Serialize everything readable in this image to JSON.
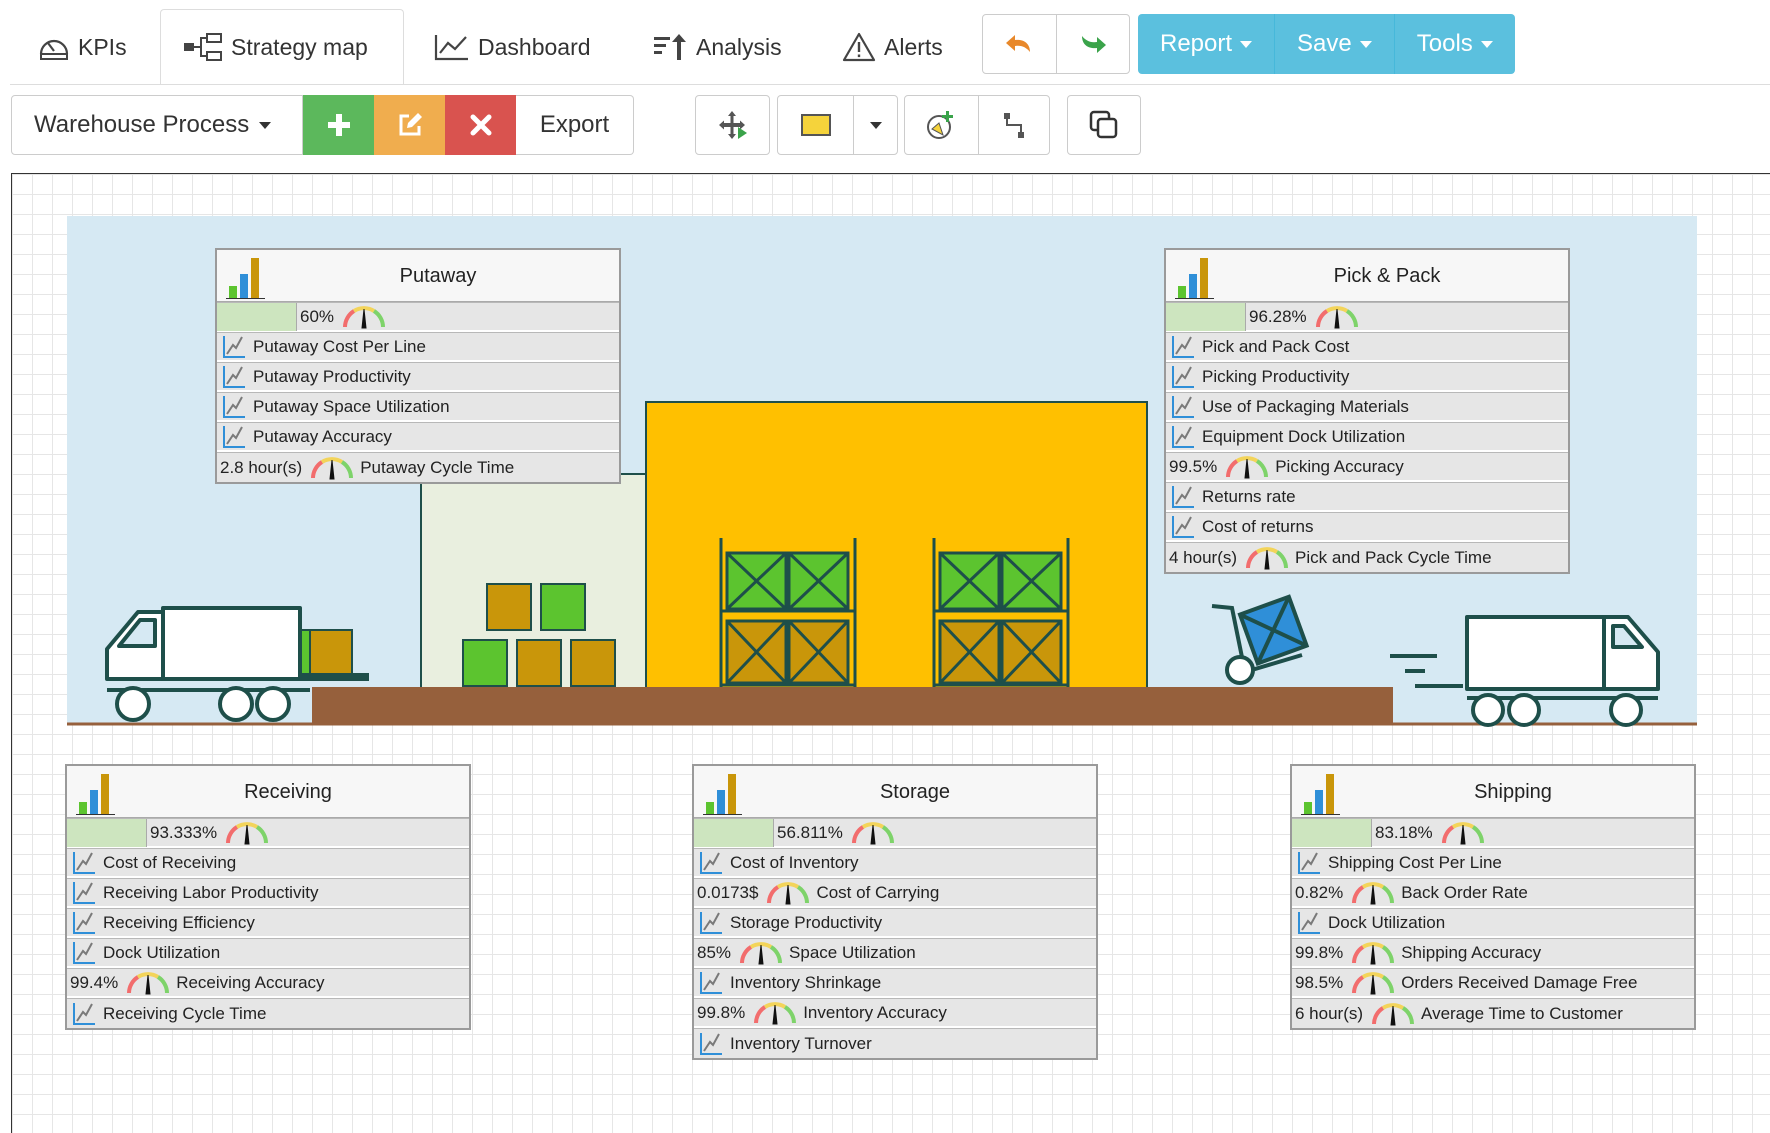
{
  "tabs": [
    {
      "label": "KPIs",
      "icon": "gauge-icon"
    },
    {
      "label": "Strategy map",
      "icon": "sitemap-icon"
    },
    {
      "label": "Dashboard",
      "icon": "line-chart-icon"
    },
    {
      "label": "Analysis",
      "icon": "sort-amount-icon"
    },
    {
      "label": "Alerts",
      "icon": "warning-icon"
    }
  ],
  "menus": {
    "report": "Report",
    "save": "Save",
    "tools": "Tools"
  },
  "toolbar": {
    "map_name": "Warehouse Process",
    "export_label": "Export"
  },
  "colors": {
    "add": "#5cb85c",
    "edit": "#f0ad4e",
    "delete": "#d9534f",
    "menu": "#5bc0de",
    "scene_bg": "#d6e9f3",
    "floor": "#96603c",
    "building": "#ffc000",
    "crate_green": "#5cc42f",
    "crate_gold": "#c9960a",
    "score_fill": "#cde5bf"
  },
  "boxes": {
    "putaway": {
      "title": "Putaway",
      "score": "60%",
      "score_fraction": 0.6,
      "rows": [
        {
          "name": "Putaway Cost Per Line",
          "value": ""
        },
        {
          "name": "Putaway Productivity",
          "value": ""
        },
        {
          "name": "Putaway Space Utilization",
          "value": ""
        },
        {
          "name": "Putaway Accuracy",
          "value": ""
        },
        {
          "name": "Putaway Cycle Time",
          "value": "2.8 hour(s)"
        }
      ]
    },
    "pick": {
      "title": "Pick & Pack",
      "score": "96.28%",
      "score_fraction": 0.9628,
      "rows": [
        {
          "name": "Pick and Pack Cost",
          "value": ""
        },
        {
          "name": "Picking Productivity",
          "value": ""
        },
        {
          "name": "Use of Packaging Materials",
          "value": ""
        },
        {
          "name": "Equipment Dock Utilization",
          "value": ""
        },
        {
          "name": "Picking Accuracy",
          "value": "99.5%"
        },
        {
          "name": "Returns rate",
          "value": ""
        },
        {
          "name": "Cost of returns",
          "value": ""
        },
        {
          "name": "Pick and Pack Cycle Time",
          "value": "4 hour(s)"
        }
      ]
    },
    "receiving": {
      "title": "Receiving",
      "score": "93.333%",
      "score_fraction": 0.93333,
      "rows": [
        {
          "name": "Cost of Receiving",
          "value": ""
        },
        {
          "name": "Receiving Labor Productivity",
          "value": ""
        },
        {
          "name": "Receiving Efficiency",
          "value": ""
        },
        {
          "name": "Dock Utilization",
          "value": ""
        },
        {
          "name": "Receiving Accuracy",
          "value": "99.4%"
        },
        {
          "name": "Receiving Cycle Time",
          "value": ""
        }
      ]
    },
    "storage": {
      "title": "Storage",
      "score": "56.811%",
      "score_fraction": 0.56811,
      "rows": [
        {
          "name": "Cost of Inventory",
          "value": ""
        },
        {
          "name": "Cost of Carrying",
          "value": "0.0173$"
        },
        {
          "name": "Storage Productivity",
          "value": ""
        },
        {
          "name": "Space Utilization",
          "value": "85%"
        },
        {
          "name": "Inventory Shrinkage",
          "value": ""
        },
        {
          "name": "Inventory Accuracy",
          "value": "99.8%"
        },
        {
          "name": "Inventory Turnover",
          "value": ""
        }
      ]
    },
    "shipping": {
      "title": "Shipping",
      "score": "83.18%",
      "score_fraction": 0.8318,
      "rows": [
        {
          "name": "Shipping Cost Per Line",
          "value": ""
        },
        {
          "name": "Back Order Rate",
          "value": "0.82%"
        },
        {
          "name": "Dock Utilization",
          "value": ""
        },
        {
          "name": "Shipping Accuracy",
          "value": "99.8%"
        },
        {
          "name": "Orders Received Damage Free",
          "value": "98.5%"
        },
        {
          "name": "Average Time to Customer",
          "value": "6 hour(s)"
        }
      ]
    }
  }
}
